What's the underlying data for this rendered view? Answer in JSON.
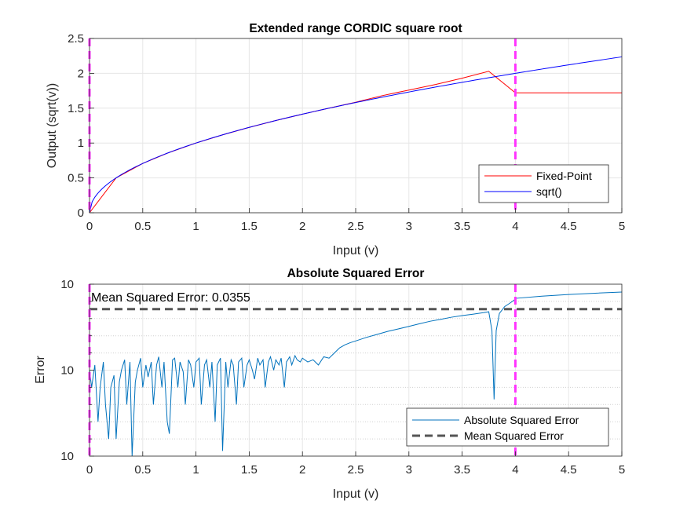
{
  "colors": {
    "fixed_point": "#ff0000",
    "sqrt": "#0000ff",
    "abs_error": "#0072bd",
    "mse": "#555555",
    "marker": "#ff33ff",
    "grid": "#e6e6e6",
    "axis": "#262626"
  },
  "chart_data": [
    {
      "type": "line",
      "title": "Extended range CORDIC square root",
      "xlabel": "Input (v)",
      "ylabel": "Output (sqrt(v))",
      "xlim": [
        0,
        5
      ],
      "ylim": [
        0,
        2.5
      ],
      "xticks": [
        "0",
        "0.5",
        "1",
        "1.5",
        "2",
        "2.5",
        "3",
        "3.5",
        "4",
        "4.5",
        "5"
      ],
      "yticks": [
        "0",
        "0.5",
        "1",
        "1.5",
        "2",
        "2.5"
      ],
      "grid": true,
      "legend_position": "bottom-right",
      "vertical_markers": [
        0,
        4
      ],
      "series": [
        {
          "name": "Fixed-Point",
          "x": [
            0,
            0.25,
            0.5,
            0.75,
            1,
            1.25,
            1.5,
            1.75,
            2,
            2.25,
            2.5,
            2.75,
            3,
            3.25,
            3.5,
            3.75,
            4,
            4.5,
            5
          ],
          "y": [
            0,
            0.5,
            0.707,
            0.866,
            1.0,
            1.118,
            1.225,
            1.323,
            1.414,
            1.5,
            1.585,
            1.68,
            1.76,
            1.84,
            1.93,
            2.03,
            1.72,
            1.72,
            1.72
          ]
        },
        {
          "name": "sqrt()",
          "x": [
            0,
            0.25,
            0.5,
            0.75,
            1,
            1.25,
            1.5,
            1.75,
            2,
            2.25,
            2.5,
            2.75,
            3,
            3.25,
            3.5,
            3.75,
            4,
            4.25,
            4.5,
            4.75,
            5
          ],
          "y": [
            0,
            0.5,
            0.707,
            0.866,
            1.0,
            1.118,
            1.225,
            1.323,
            1.414,
            1.5,
            1.581,
            1.658,
            1.732,
            1.803,
            1.871,
            1.936,
            2.0,
            2.062,
            2.121,
            2.179,
            2.236
          ]
        }
      ]
    },
    {
      "type": "line",
      "title": "Absolute Squared Error",
      "xlabel": "Input (v)",
      "ylabel": "Error",
      "xlim": [
        0,
        5
      ],
      "ylim": [
        1e-10,
        1
      ],
      "yscale": "log",
      "xticks": [
        "0",
        "0.5",
        "1",
        "1.5",
        "2",
        "2.5",
        "3",
        "3.5",
        "4",
        "4.5",
        "5"
      ],
      "yticks": [
        {
          "base": "10",
          "exp": "-10"
        },
        {
          "base": "10",
          "exp": "-5"
        },
        {
          "base": "10",
          "exp": "0"
        }
      ],
      "grid": true,
      "legend_position": "bottom-right",
      "vertical_markers": [
        0,
        4
      ],
      "annotation": "Mean Squared Error: 0.0355",
      "series": [
        {
          "name": "Absolute Squared Error",
          "x": [
            0,
            0.02,
            0.05,
            0.08,
            0.1,
            0.13,
            0.15,
            0.18,
            0.2,
            0.23,
            0.25,
            0.28,
            0.3,
            0.33,
            0.35,
            0.38,
            0.4,
            0.43,
            0.45,
            0.48,
            0.5,
            0.53,
            0.55,
            0.58,
            0.6,
            0.63,
            0.65,
            0.68,
            0.7,
            0.73,
            0.75,
            0.78,
            0.8,
            0.83,
            0.85,
            0.88,
            0.9,
            0.93,
            0.95,
            0.98,
            1.0,
            1.03,
            1.05,
            1.08,
            1.1,
            1.13,
            1.15,
            1.18,
            1.2,
            1.23,
            1.25,
            1.28,
            1.3,
            1.33,
            1.35,
            1.38,
            1.4,
            1.43,
            1.45,
            1.48,
            1.5,
            1.53,
            1.55,
            1.58,
            1.6,
            1.63,
            1.65,
            1.68,
            1.7,
            1.73,
            1.75,
            1.78,
            1.8,
            1.83,
            1.85,
            1.88,
            1.9,
            1.93,
            1.95,
            1.98,
            2.0,
            2.05,
            2.1,
            2.15,
            2.2,
            2.25,
            2.3,
            2.35,
            2.4,
            2.45,
            2.5,
            2.6,
            2.7,
            2.8,
            2.9,
            3.0,
            3.1,
            3.2,
            3.3,
            3.4,
            3.5,
            3.6,
            3.7,
            3.75,
            3.78,
            3.8,
            3.82,
            3.85,
            3.9,
            3.95,
            3.99,
            4.0,
            4.25,
            4.5,
            4.75,
            5.0
          ],
          "y": [
            1e-05,
            1e-06,
            2e-05,
            1e-08,
            1e-06,
            3e-05,
            1e-07,
            1e-09,
            1e-06,
            5e-06,
            1e-09,
            2e-06,
            1e-05,
            4e-05,
            1e-07,
            3e-05,
            1e-10,
            2e-06,
            1e-05,
            5e-05,
            1e-06,
            2e-05,
            4e-06,
            3e-05,
            1e-07,
            2e-05,
            6e-05,
            1e-06,
            3e-05,
            1e-08,
            2e-09,
            4e-05,
            5e-05,
            1e-06,
            3e-05,
            8e-06,
            1e-07,
            4e-05,
            2e-05,
            1e-06,
            3e-05,
            5e-05,
            1e-07,
            2e-05,
            4e-05,
            1e-06,
            3e-05,
            1e-08,
            2e-05,
            5e-05,
            2e-10,
            3e-05,
            1e-06,
            4e-05,
            2e-05,
            1e-07,
            3e-05,
            5e-05,
            1e-06,
            2e-05,
            4e-05,
            1e-05,
            3e-06,
            5e-05,
            2e-05,
            4e-05,
            1e-06,
            3e-05,
            6e-05,
            1e-05,
            4e-05,
            2e-05,
            5e-05,
            1e-06,
            3e-05,
            6e-05,
            2e-05,
            7e-05,
            4e-05,
            3e-05,
            5e-05,
            3e-05,
            4e-05,
            2e-05,
            6e-05,
            5e-05,
            0.0001,
            0.0002,
            0.0003,
            0.0004,
            0.0005,
            0.0008,
            0.0012,
            0.0018,
            0.0025,
            0.0035,
            0.005,
            0.007,
            0.009,
            0.012,
            0.015,
            0.018,
            0.022,
            0.025,
            0.002,
            2e-07,
            0.002,
            0.02,
            0.05,
            0.08,
            0.12,
            0.15,
            0.2,
            0.25,
            0.3,
            0.35
          ]
        },
        {
          "name": "Mean Squared Error",
          "x": [
            0,
            5
          ],
          "y": [
            0.0355,
            0.0355
          ]
        }
      ]
    }
  ]
}
